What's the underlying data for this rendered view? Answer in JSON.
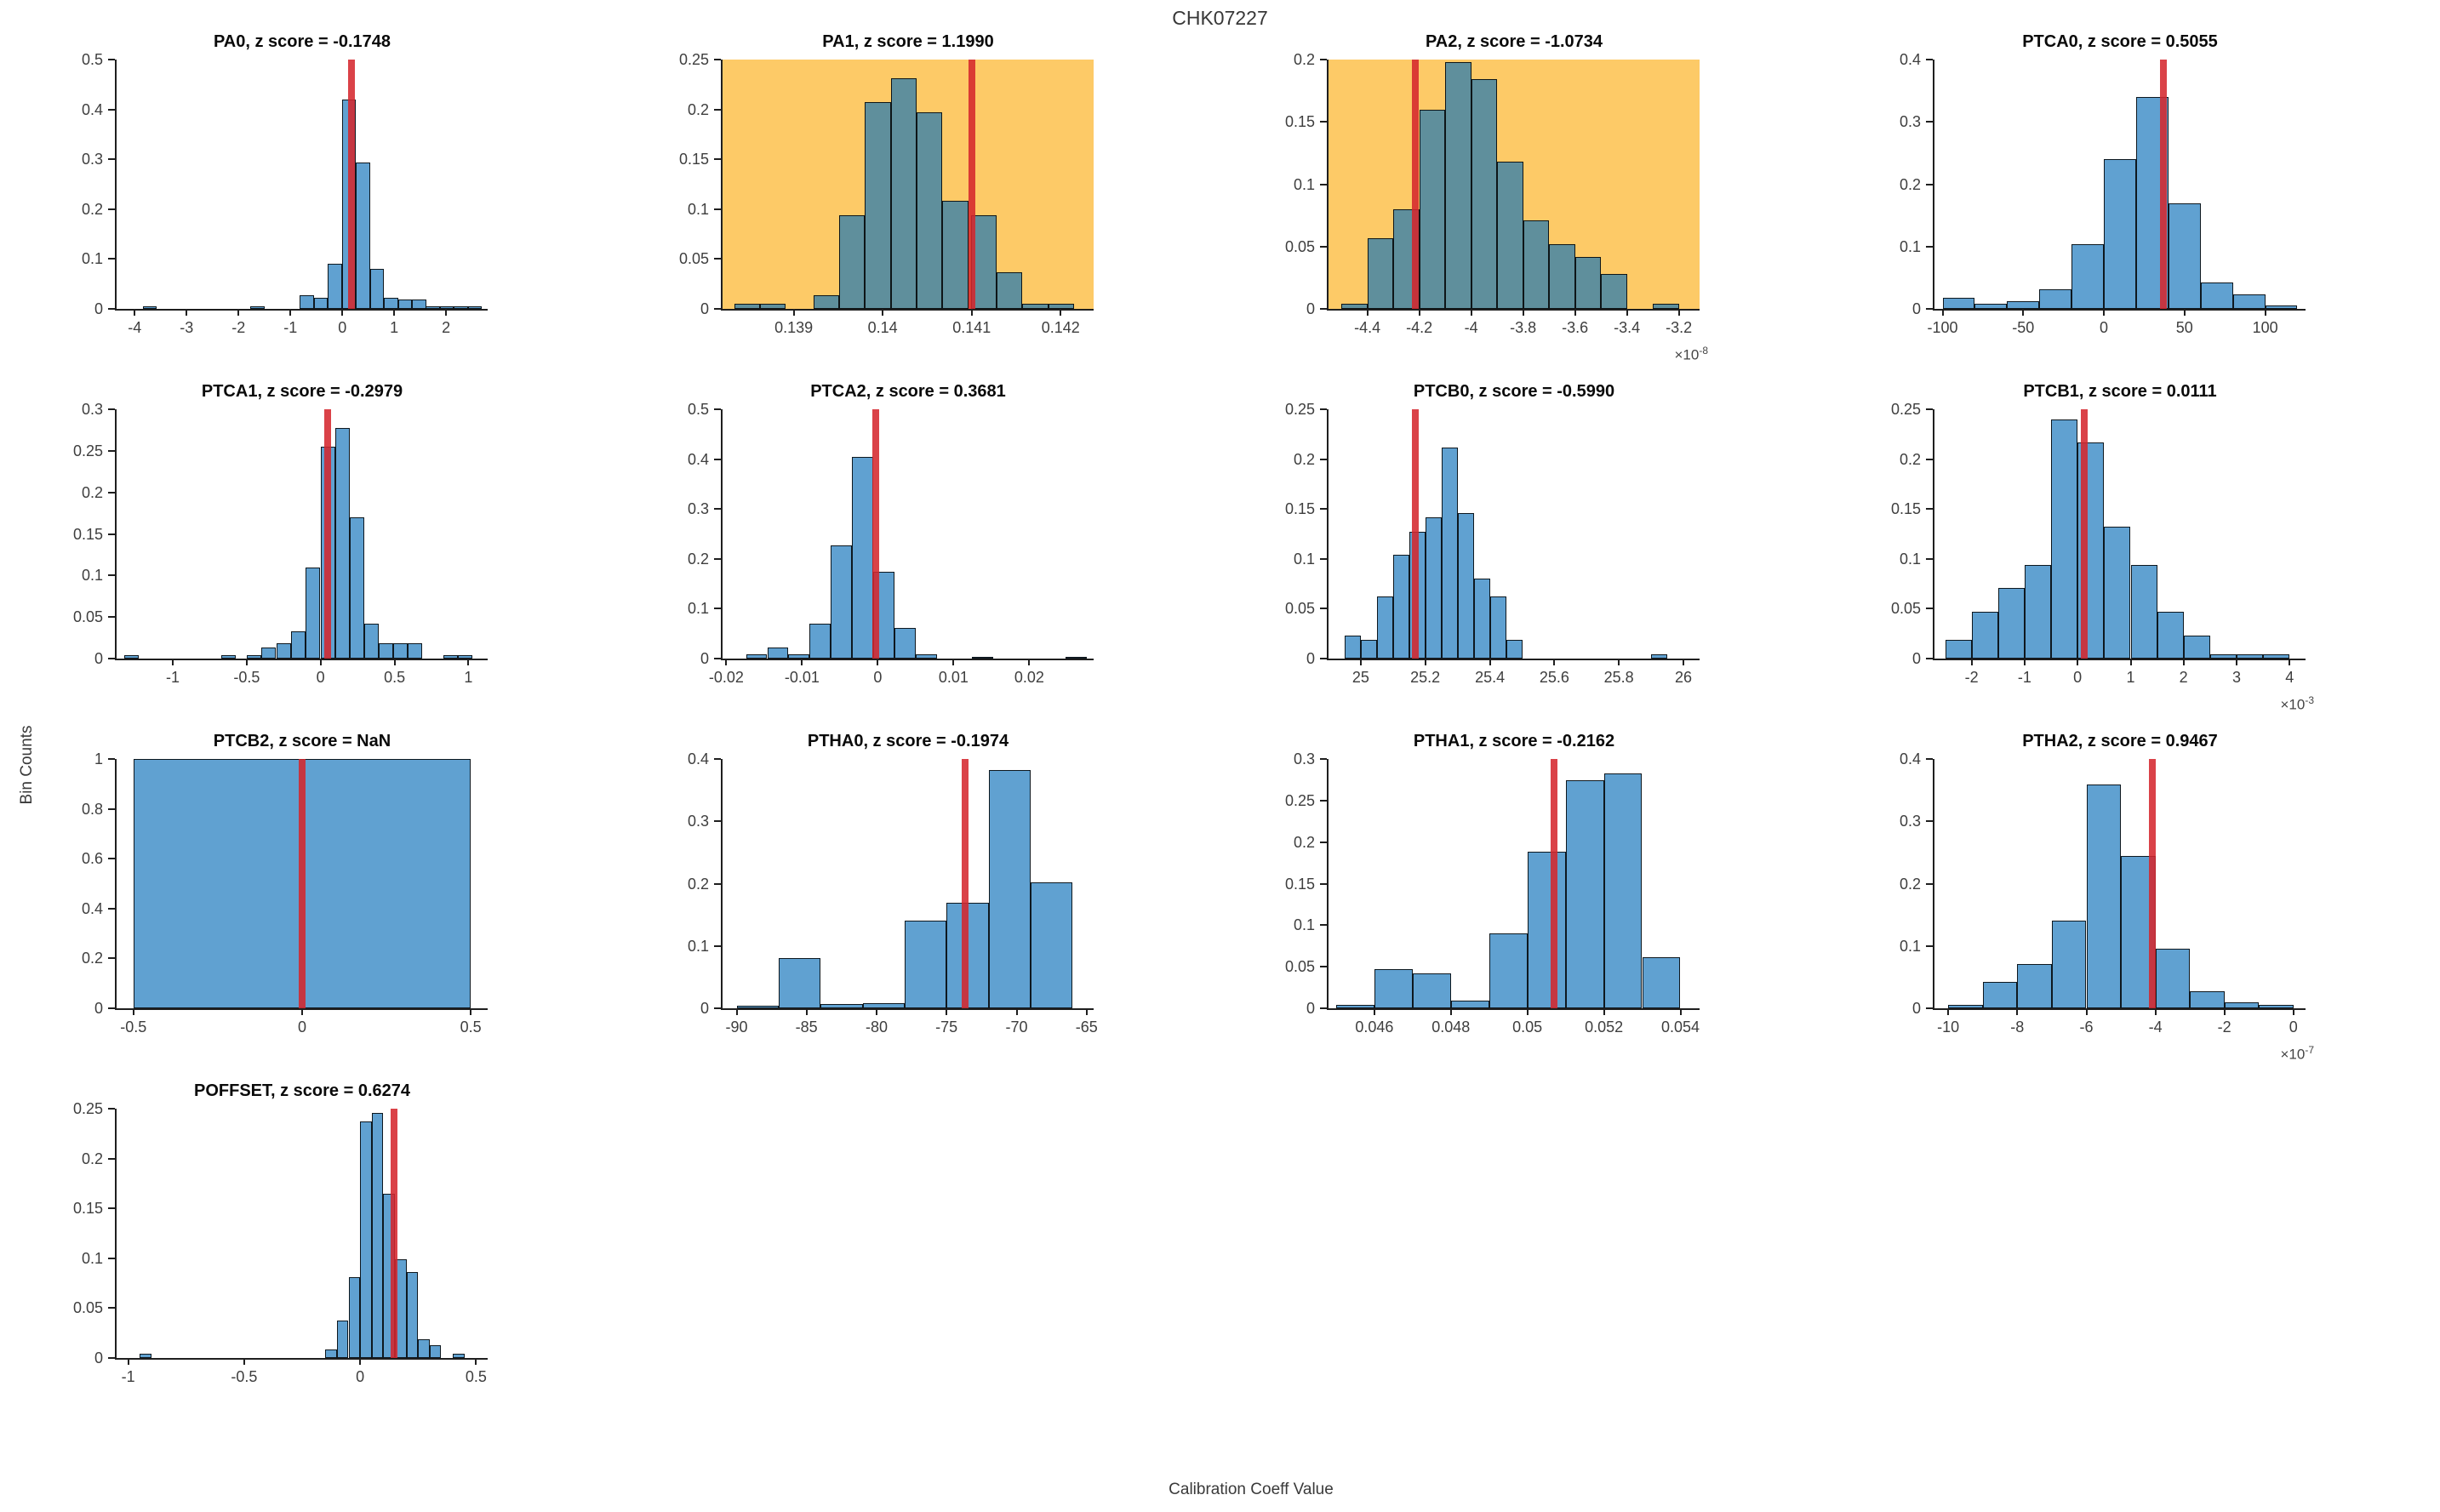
{
  "figure": {
    "title": "CHK07227",
    "xlabel": "Calibration Coeff Value",
    "ylabel": "Bin Counts",
    "colors": {
      "bar_fill_rgba": "rgba(10,110,185,0.65)",
      "bar_fill_on_white_hex": "#60a1d1",
      "bar_fill_on_orange_hex": "#67949b",
      "highlight_background": "#fdca67",
      "red_marker": "rgba(212,38,45,0.87)",
      "axis": "#1f1f1f",
      "tick_text": "#3e3e3e",
      "title_text": "#383838"
    }
  },
  "chart_data": [
    {
      "name": "PA0",
      "type": "bar",
      "title": "PA0, z score = -0.1748",
      "z_score": "-0.1748",
      "highlight": false,
      "xlim": [
        -4.35,
        2.8
      ],
      "ylim": [
        0,
        0.5
      ],
      "xticks": [
        -4,
        -3,
        -2,
        -1,
        0,
        1,
        2
      ],
      "xtick_labels": [
        "-4",
        "-3",
        "-2",
        "-1",
        "0",
        "1",
        "2"
      ],
      "yticks": [
        0,
        0.1,
        0.2,
        0.3,
        0.4,
        0.5
      ],
      "ytick_labels": [
        "0",
        "0.1",
        "0.2",
        "0.3",
        "0.4",
        "0.5"
      ],
      "x_multiplier_exp": null,
      "red_line_x": 0.18,
      "bin_width": 0.27,
      "bars": [
        [
          -3.85,
          0.005
        ],
        [
          -1.77,
          0.005
        ],
        [
          -0.82,
          0.027
        ],
        [
          -0.55,
          0.022
        ],
        [
          -0.28,
          0.09
        ],
        [
          -0.01,
          0.42
        ],
        [
          0.26,
          0.293
        ],
        [
          0.53,
          0.081
        ],
        [
          0.8,
          0.022
        ],
        [
          1.07,
          0.019
        ],
        [
          1.34,
          0.019
        ],
        [
          1.61,
          0.006
        ],
        [
          1.88,
          0.006
        ],
        [
          2.15,
          0.006
        ],
        [
          2.42,
          0.006
        ]
      ]
    },
    {
      "name": "PA1",
      "type": "bar",
      "title": "PA1, z score = 1.1990",
      "z_score": "1.1990",
      "highlight": true,
      "xlim": [
        0.1382,
        0.14237
      ],
      "ylim": [
        0,
        0.25
      ],
      "xticks": [
        0.139,
        0.14,
        0.141,
        0.142
      ],
      "xtick_labels": [
        "0.139",
        "0.14",
        "0.141",
        "0.142"
      ],
      "yticks": [
        0,
        0.05,
        0.1,
        0.15,
        0.2,
        0.25
      ],
      "ytick_labels": [
        "0",
        "0.05",
        "0.1",
        "0.15",
        "0.2",
        "0.25"
      ],
      "x_multiplier_exp": null,
      "red_line_x": 0.141,
      "bin_width": 0.00029,
      "bars": [
        [
          0.13833,
          0.005
        ],
        [
          0.13862,
          0.005
        ],
        [
          0.13922,
          0.014
        ],
        [
          0.13951,
          0.094
        ],
        [
          0.1398,
          0.207
        ],
        [
          0.14009,
          0.231
        ],
        [
          0.14038,
          0.197
        ],
        [
          0.14067,
          0.108
        ],
        [
          0.14099,
          0.094
        ],
        [
          0.14128,
          0.037
        ],
        [
          0.14157,
          0.005
        ],
        [
          0.14186,
          0.005
        ]
      ]
    },
    {
      "name": "PA2",
      "type": "bar",
      "title": "PA2, z score = -1.0734",
      "z_score": "-1.0734",
      "highlight": true,
      "xlim": [
        -4.55,
        -3.12
      ],
      "ylim": [
        0,
        0.2
      ],
      "xticks": [
        -4.4,
        -4.2,
        -4,
        -3.8,
        -3.6,
        -3.4,
        -3.2
      ],
      "xtick_labels": [
        "-4.4",
        "-4.2",
        "-4",
        "-3.8",
        "-3.6",
        "-3.4",
        "-3.2"
      ],
      "yticks": [
        0,
        0.05,
        0.1,
        0.15,
        0.2
      ],
      "ytick_labels": [
        "0",
        "0.05",
        "0.1",
        "0.15",
        "0.2"
      ],
      "x_multiplier_exp": "-8",
      "red_line_x": -4.215,
      "bin_width": 0.1,
      "bars": [
        [
          -4.5,
          0.004
        ],
        [
          -4.4,
          0.057
        ],
        [
          -4.3,
          0.08
        ],
        [
          -4.2,
          0.16
        ],
        [
          -4.1,
          0.198
        ],
        [
          -4.0,
          0.184
        ],
        [
          -3.9,
          0.118
        ],
        [
          -3.8,
          0.071
        ],
        [
          -3.7,
          0.052
        ],
        [
          -3.6,
          0.042
        ],
        [
          -3.5,
          0.028
        ],
        [
          -3.3,
          0.004
        ]
      ]
    },
    {
      "name": "PTCA0",
      "type": "bar",
      "title": "PTCA0, z score = 0.5055",
      "z_score": "0.5055",
      "highlight": false,
      "xlim": [
        -105,
        125
      ],
      "ylim": [
        0,
        0.4
      ],
      "xticks": [
        -100,
        -50,
        0,
        50,
        100
      ],
      "xtick_labels": [
        "-100",
        "-50",
        "0",
        "50",
        "100"
      ],
      "yticks": [
        0,
        0.1,
        0.2,
        0.3,
        0.4
      ],
      "ytick_labels": [
        "0",
        "0.1",
        "0.2",
        "0.3",
        "0.4"
      ],
      "x_multiplier_exp": null,
      "red_line_x": 37,
      "bin_width": 20,
      "bars": [
        [
          -100,
          0.018
        ],
        [
          -80,
          0.008
        ],
        [
          -60,
          0.013
        ],
        [
          -40,
          0.032
        ],
        [
          -20,
          0.104
        ],
        [
          0,
          0.24
        ],
        [
          20,
          0.34
        ],
        [
          40,
          0.17
        ],
        [
          60,
          0.042
        ],
        [
          80,
          0.023
        ],
        [
          100,
          0.005
        ]
      ]
    },
    {
      "name": "PTCA1",
      "type": "bar",
      "title": "PTCA1, z score = -0.2979",
      "z_score": "-0.2979",
      "highlight": false,
      "xlim": [
        -1.38,
        1.13
      ],
      "ylim": [
        0,
        0.3
      ],
      "xticks": [
        -1,
        -0.5,
        0,
        0.5,
        1
      ],
      "xtick_labels": [
        "-1",
        "-0.5",
        "0",
        "0.5",
        "1"
      ],
      "yticks": [
        0,
        0.05,
        0.1,
        0.15,
        0.2,
        0.25,
        0.3
      ],
      "ytick_labels": [
        "0",
        "0.05",
        "0.1",
        "0.15",
        "0.2",
        "0.25",
        "0.3"
      ],
      "x_multiplier_exp": null,
      "red_line_x": 0.05,
      "bin_width": 0.098,
      "bars": [
        [
          -1.33,
          0.004
        ],
        [
          -0.67,
          0.004
        ],
        [
          -0.5,
          0.004
        ],
        [
          -0.4,
          0.013
        ],
        [
          -0.3,
          0.018
        ],
        [
          -0.2,
          0.033
        ],
        [
          -0.1,
          0.11
        ],
        [
          0,
          0.255
        ],
        [
          0.098,
          0.278
        ],
        [
          0.196,
          0.17
        ],
        [
          0.294,
          0.042
        ],
        [
          0.392,
          0.018
        ],
        [
          0.49,
          0.018
        ],
        [
          0.588,
          0.018
        ],
        [
          0.83,
          0.004
        ],
        [
          0.93,
          0.004
        ]
      ]
    },
    {
      "name": "PTCA2",
      "type": "bar",
      "title": "PTCA2, z score = 0.3681",
      "z_score": "0.3681",
      "highlight": false,
      "xlim": [
        -0.0205,
        0.0285
      ],
      "ylim": [
        0,
        0.5
      ],
      "xticks": [
        -0.02,
        -0.01,
        0,
        0.01,
        0.02
      ],
      "xtick_labels": [
        "-0.02",
        "-0.01",
        "0",
        "0.01",
        "0.02"
      ],
      "yticks": [
        0,
        0.1,
        0.2,
        0.3,
        0.4,
        0.5
      ],
      "ytick_labels": [
        "0",
        "0.1",
        "0.2",
        "0.3",
        "0.4",
        "0.5"
      ],
      "x_multiplier_exp": null,
      "red_line_x": -0.0003,
      "bin_width": 0.0028,
      "bars": [
        [
          -0.0174,
          0.008
        ],
        [
          -0.0146,
          0.022
        ],
        [
          -0.0118,
          0.008
        ],
        [
          -0.009,
          0.07
        ],
        [
          -0.0062,
          0.227
        ],
        [
          -0.0034,
          0.405
        ],
        [
          -0.0006,
          0.174
        ],
        [
          0.0022,
          0.062
        ],
        [
          0.005,
          0.009
        ],
        [
          0.0124,
          0.004
        ],
        [
          0.0248,
          0.004
        ]
      ]
    },
    {
      "name": "PTCB0",
      "type": "bar",
      "title": "PTCB0, z score = -0.5990",
      "z_score": "-0.5990",
      "highlight": false,
      "xlim": [
        24.9,
        26.05
      ],
      "ylim": [
        0,
        0.25
      ],
      "xticks": [
        25,
        25.2,
        25.4,
        25.6,
        25.8,
        26
      ],
      "xtick_labels": [
        "25",
        "25.2",
        "25.4",
        "25.6",
        "25.8",
        "26"
      ],
      "yticks": [
        0,
        0.05,
        0.1,
        0.15,
        0.2,
        0.25
      ],
      "ytick_labels": [
        "0",
        "0.05",
        "0.1",
        "0.15",
        "0.2",
        "0.25"
      ],
      "x_multiplier_exp": null,
      "red_line_x": 25.17,
      "bin_width": 0.05,
      "bars": [
        [
          24.95,
          0.023
        ],
        [
          25.0,
          0.019
        ],
        [
          25.05,
          0.062
        ],
        [
          25.1,
          0.104
        ],
        [
          25.15,
          0.127
        ],
        [
          25.2,
          0.142
        ],
        [
          25.25,
          0.212
        ],
        [
          25.3,
          0.146
        ],
        [
          25.35,
          0.08
        ],
        [
          25.4,
          0.062
        ],
        [
          25.45,
          0.019
        ],
        [
          25.9,
          0.004
        ]
      ]
    },
    {
      "name": "PTCB1",
      "type": "bar",
      "title": "PTCB1, z score = 0.0111",
      "z_score": "0.0111",
      "highlight": false,
      "xlim": [
        -2.7,
        4.3
      ],
      "ylim": [
        0,
        0.25
      ],
      "xticks": [
        -2,
        -1,
        0,
        1,
        2,
        3,
        4
      ],
      "xtick_labels": [
        "-2",
        "-1",
        "0",
        "1",
        "2",
        "3",
        "4"
      ],
      "yticks": [
        0,
        0.05,
        0.1,
        0.15,
        0.2,
        0.25
      ],
      "ytick_labels": [
        "0",
        "0.05",
        "0.1",
        "0.15",
        "0.2",
        "0.25"
      ],
      "x_multiplier_exp": "-3",
      "red_line_x": 0.13,
      "bin_width": 0.5,
      "bars": [
        [
          -2.5,
          0.019
        ],
        [
          -2,
          0.047
        ],
        [
          -1.5,
          0.071
        ],
        [
          -1,
          0.094
        ],
        [
          -0.5,
          0.24
        ],
        [
          0,
          0.217
        ],
        [
          0.5,
          0.132
        ],
        [
          1,
          0.094
        ],
        [
          1.5,
          0.047
        ],
        [
          2,
          0.023
        ],
        [
          2.5,
          0.004
        ],
        [
          3,
          0.004
        ],
        [
          3.5,
          0.004
        ]
      ]
    },
    {
      "name": "PTCB2",
      "type": "bar",
      "title": "PTCB2, z score = NaN",
      "z_score": "NaN",
      "highlight": false,
      "xlim": [
        -0.55,
        0.55
      ],
      "ylim": [
        0,
        1
      ],
      "xticks": [
        -0.5,
        0,
        0.5
      ],
      "xtick_labels": [
        "-0.5",
        "0",
        "0.5"
      ],
      "yticks": [
        0,
        0.2,
        0.4,
        0.6,
        0.8,
        1
      ],
      "ytick_labels": [
        "0",
        "0.2",
        "0.4",
        "0.6",
        "0.8",
        "1"
      ],
      "x_multiplier_exp": null,
      "red_line_x": 0,
      "bin_width": 1.0,
      "bars": [
        [
          -0.5,
          1.0
        ]
      ]
    },
    {
      "name": "PTHA0",
      "type": "bar",
      "title": "PTHA0, z score = -0.1974",
      "z_score": "-0.1974",
      "highlight": false,
      "xlim": [
        -91,
        -64.5
      ],
      "ylim": [
        0,
        0.4
      ],
      "xticks": [
        -90,
        -85,
        -80,
        -75,
        -70,
        -65
      ],
      "xtick_labels": [
        "-90",
        "-85",
        "-80",
        "-75",
        "-70",
        "-65"
      ],
      "yticks": [
        0,
        0.1,
        0.2,
        0.3,
        0.4
      ],
      "ytick_labels": [
        "0",
        "0.1",
        "0.2",
        "0.3",
        "0.4"
      ],
      "x_multiplier_exp": null,
      "red_line_x": -73.7,
      "bin_width": 3,
      "bars": [
        [
          -90,
          0.004
        ],
        [
          -87,
          0.08
        ],
        [
          -84,
          0.007
        ],
        [
          -81,
          0.008
        ],
        [
          -78,
          0.14
        ],
        [
          -75,
          0.169
        ],
        [
          -72,
          0.383
        ],
        [
          -69,
          0.202
        ]
      ]
    },
    {
      "name": "PTHA1",
      "type": "bar",
      "title": "PTHA1, z score = -0.2162",
      "z_score": "-0.2162",
      "highlight": false,
      "xlim": [
        0.0448,
        0.0545
      ],
      "ylim": [
        0,
        0.3
      ],
      "xticks": [
        0.046,
        0.048,
        0.05,
        0.052,
        0.054
      ],
      "xtick_labels": [
        "0.046",
        "0.048",
        "0.05",
        "0.052",
        "0.054"
      ],
      "yticks": [
        0,
        0.05,
        0.1,
        0.15,
        0.2,
        0.25,
        0.3
      ],
      "ytick_labels": [
        "0",
        "0.05",
        "0.1",
        "0.15",
        "0.2",
        "0.25",
        "0.3"
      ],
      "x_multiplier_exp": null,
      "red_line_x": 0.0507,
      "bin_width": 0.001,
      "bars": [
        [
          0.045,
          0.004
        ],
        [
          0.046,
          0.047
        ],
        [
          0.047,
          0.042
        ],
        [
          0.048,
          0.009
        ],
        [
          0.049,
          0.09
        ],
        [
          0.05,
          0.188
        ],
        [
          0.051,
          0.274
        ],
        [
          0.052,
          0.283
        ],
        [
          0.053,
          0.061
        ]
      ]
    },
    {
      "name": "PTHA2",
      "type": "bar",
      "title": "PTHA2, z score = 0.9467",
      "z_score": "0.9467",
      "highlight": false,
      "xlim": [
        -10.4,
        0.35
      ],
      "ylim": [
        0,
        0.4
      ],
      "xticks": [
        -10,
        -8,
        -6,
        -4,
        -2,
        0
      ],
      "xtick_labels": [
        "-10",
        "-8",
        "-6",
        "-4",
        "-2",
        "0"
      ],
      "yticks": [
        0,
        0.1,
        0.2,
        0.3,
        0.4
      ],
      "ytick_labels": [
        "0",
        "0.1",
        "0.2",
        "0.3",
        "0.4"
      ],
      "x_multiplier_exp": "-7",
      "red_line_x": -4.1,
      "bin_width": 1,
      "bars": [
        [
          -10,
          0.005
        ],
        [
          -9,
          0.042
        ],
        [
          -8,
          0.071
        ],
        [
          -7,
          0.141
        ],
        [
          -6,
          0.359
        ],
        [
          -5,
          0.245
        ],
        [
          -4,
          0.095
        ],
        [
          -3,
          0.028
        ],
        [
          -2,
          0.009
        ],
        [
          -1,
          0.005
        ]
      ]
    },
    {
      "name": "POFFSET",
      "type": "bar",
      "title": "POFFSET, z score = 0.6274",
      "z_score": "0.6274",
      "highlight": false,
      "xlim": [
        -1.05,
        0.55
      ],
      "ylim": [
        0,
        0.25
      ],
      "xticks": [
        -1,
        -0.5,
        0,
        0.5
      ],
      "xtick_labels": [
        "-1",
        "-0.5",
        "0",
        "0.5"
      ],
      "yticks": [
        0,
        0.05,
        0.1,
        0.15,
        0.2,
        0.25
      ],
      "ytick_labels": [
        "0",
        "0.05",
        "0.1",
        "0.15",
        "0.2",
        "0.25"
      ],
      "x_multiplier_exp": null,
      "red_line_x": 0.145,
      "bin_width": 0.05,
      "bars": [
        [
          -0.95,
          0.004
        ],
        [
          -0.15,
          0.009
        ],
        [
          -0.1,
          0.038
        ],
        [
          -0.05,
          0.081
        ],
        [
          0,
          0.237
        ],
        [
          0.05,
          0.246
        ],
        [
          0.1,
          0.165
        ],
        [
          0.15,
          0.099
        ],
        [
          0.2,
          0.086
        ],
        [
          0.25,
          0.019
        ],
        [
          0.3,
          0.013
        ],
        [
          0.4,
          0.004
        ]
      ]
    }
  ]
}
